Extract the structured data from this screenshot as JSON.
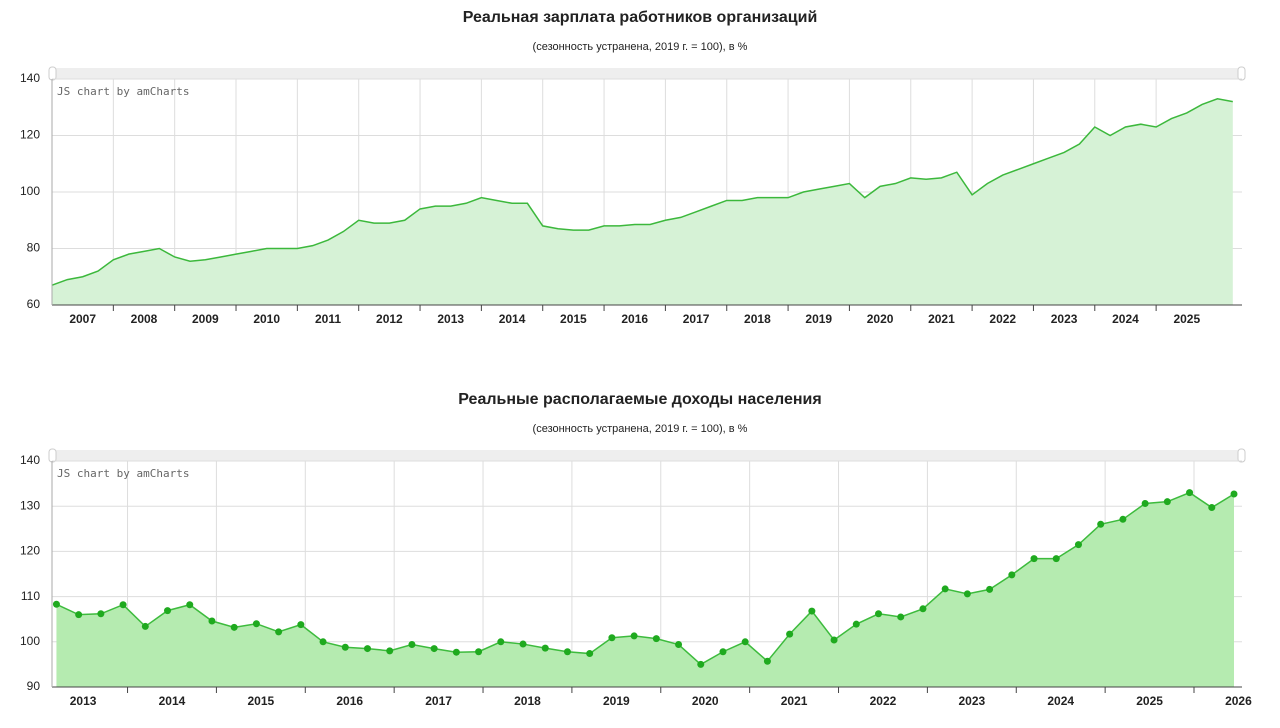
{
  "chart_data": [
    {
      "type": "area",
      "title": "Реальная зарплата работников организаций",
      "subtitle": "(сезонность устранена, 2019 г. = 100), в %",
      "credit": "JS chart by amCharts",
      "x": [
        2007,
        2007.25,
        2007.5,
        2007.75,
        2008,
        2008.25,
        2008.5,
        2008.75,
        2009,
        2009.25,
        2009.5,
        2009.75,
        2010,
        2010.25,
        2010.5,
        2010.75,
        2011,
        2011.25,
        2011.5,
        2011.75,
        2012,
        2012.25,
        2012.5,
        2012.75,
        2013,
        2013.25,
        2013.5,
        2013.75,
        2014,
        2014.25,
        2014.5,
        2014.75,
        2015,
        2015.25,
        2015.5,
        2015.75,
        2016,
        2016.25,
        2016.5,
        2016.75,
        2017,
        2017.25,
        2017.5,
        2017.75,
        2018,
        2018.25,
        2018.5,
        2018.75,
        2019,
        2019.25,
        2019.5,
        2019.75,
        2020,
        2020.25,
        2020.5,
        2020.75,
        2021,
        2021.25,
        2021.5,
        2021.75,
        2022,
        2022.25,
        2022.5,
        2022.75,
        2023,
        2023.25,
        2023.5,
        2023.75,
        2024,
        2024.25,
        2024.5,
        2024.75,
        2025,
        2025.25,
        2025.5,
        2025.75,
        2026,
        2026.25
      ],
      "series": [
        {
          "color": "#3cb83c",
          "fill": "#d6f2d6",
          "values": [
            67,
            69,
            70,
            72,
            76,
            78,
            79,
            80,
            77,
            75.5,
            76,
            77,
            78,
            79,
            80,
            80,
            80,
            81,
            83,
            86,
            90,
            89,
            89,
            90,
            94,
            95,
            95,
            96,
            98,
            97,
            96,
            96,
            88,
            87,
            86.5,
            86.5,
            88,
            88,
            88.5,
            88.5,
            90,
            91,
            93,
            95,
            97,
            97,
            98,
            98,
            98,
            100,
            101,
            102,
            103,
            98,
            102,
            103,
            105,
            104.5,
            105,
            107,
            99,
            103,
            106,
            108,
            110,
            112,
            114,
            117,
            123,
            120,
            123,
            124,
            123,
            126,
            128,
            131,
            133,
            132
          ]
        }
      ],
      "markers": false,
      "xlim": [
        2007,
        2026.4
      ],
      "xticks": [
        2007,
        2008,
        2009,
        2010,
        2011,
        2012,
        2013,
        2014,
        2015,
        2016,
        2017,
        2018,
        2019,
        2020,
        2021,
        2022,
        2023,
        2024,
        2025
      ],
      "ylim": [
        60,
        140
      ],
      "yticks": [
        60,
        80,
        100,
        120,
        140
      ],
      "grid": true
    },
    {
      "type": "area",
      "title": "Реальные располагаемые доходы населения",
      "subtitle": "(сезонность устранена, 2019 г. = 100), в %",
      "credit": "JS chart by amCharts",
      "x": [
        2013.2,
        2013.45,
        2013.7,
        2013.95,
        2014.2,
        2014.45,
        2014.7,
        2014.95,
        2015.2,
        2015.45,
        2015.7,
        2015.95,
        2016.2,
        2016.45,
        2016.7,
        2016.95,
        2017.2,
        2017.45,
        2017.7,
        2017.95,
        2018.2,
        2018.45,
        2018.7,
        2018.95,
        2019.2,
        2019.45,
        2019.7,
        2019.95,
        2020.2,
        2020.45,
        2020.7,
        2020.95,
        2021.2,
        2021.45,
        2021.7,
        2021.95,
        2022.2,
        2022.45,
        2022.7,
        2022.95,
        2023.2,
        2023.45,
        2023.7,
        2023.95,
        2024.2,
        2024.45,
        2024.7,
        2024.95,
        2025.2,
        2025.45,
        2025.7,
        2025.95,
        2026.2,
        2026.45
      ],
      "series": [
        {
          "color": "#3dbb3d",
          "fill": "#b5ebb0",
          "values": [
            108.3,
            106,
            106.2,
            108.2,
            103.4,
            106.9,
            108.2,
            104.6,
            103.2,
            104,
            102.2,
            103.8,
            100,
            98.8,
            98.5,
            98,
            99.4,
            98.5,
            97.7,
            97.8,
            100,
            99.5,
            98.6,
            97.8,
            97.4,
            100.9,
            101.3,
            100.7,
            99.4,
            95,
            97.8,
            100,
            95.7,
            101.7,
            106.8,
            100.4,
            103.9,
            106.2,
            105.5,
            107.3,
            111.7,
            110.6,
            111.6,
            114.8,
            118.4,
            118.4,
            121.5,
            126,
            127.1,
            130.6,
            131,
            133,
            129.7,
            132.7
          ]
        }
      ],
      "markers": true,
      "marker_color": "#1faa1f",
      "xlim": [
        2013.15,
        2026.54
      ],
      "xticks": [
        2013,
        2014,
        2015,
        2016,
        2017,
        2018,
        2019,
        2020,
        2021,
        2022,
        2023,
        2024,
        2025,
        2026
      ],
      "ylim": [
        90,
        140
      ],
      "yticks": [
        90,
        100,
        110,
        120,
        130,
        140
      ],
      "grid": true
    }
  ]
}
